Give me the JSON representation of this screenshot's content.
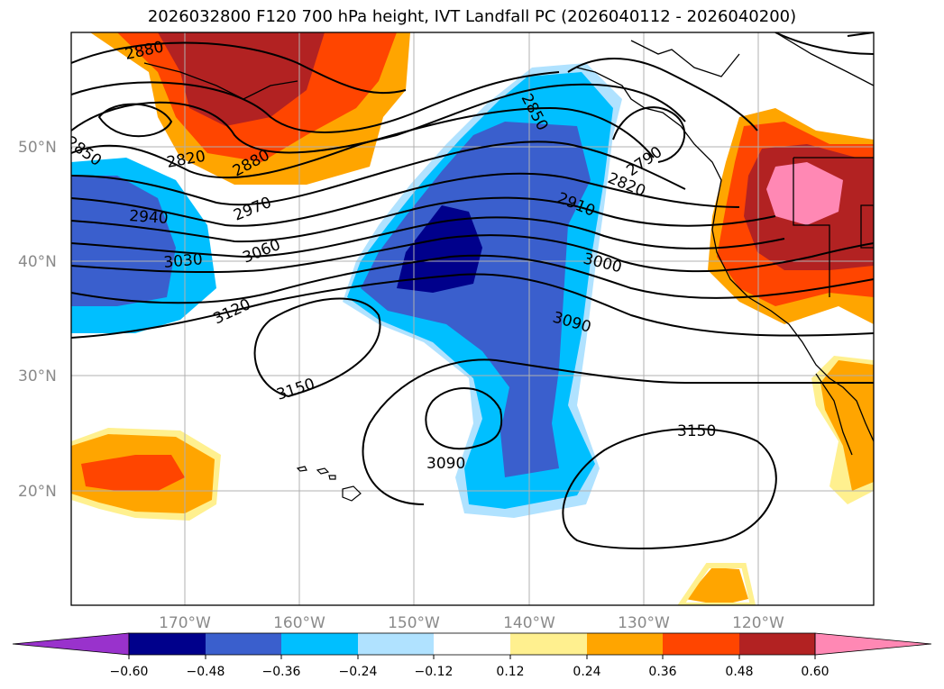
{
  "title": "2026032800 F120 700 hPa height, IVT Landfall PC (2026040112 - 2026040200)",
  "latitude_labels": [
    "50°N",
    "40°N",
    "30°N",
    "20°N"
  ],
  "longitude_labels": [
    "170°W",
    "160°W",
    "150°W",
    "140°W",
    "130°W",
    "120°W"
  ],
  "height_contour_labels": [
    "2880",
    "2850",
    "2820",
    "2880",
    "2940",
    "2970",
    "3030",
    "3060",
    "3120",
    "3150",
    "3090",
    "2850",
    "2790",
    "2820",
    "2910",
    "3000",
    "3090",
    "3150"
  ],
  "colorbar": {
    "ticks": [
      "−0.60",
      "−0.48",
      "−0.36",
      "−0.24",
      "−0.12",
      "0.12",
      "0.24",
      "0.36",
      "0.48",
      "0.60"
    ],
    "colors": [
      "#9932cc",
      "#00008b",
      "#3a5fcd",
      "#00bfff",
      "#b0e2ff",
      "#ffffff",
      "#fff08f",
      "#ffa500",
      "#ff4500",
      "#b22222",
      "#ff88b4"
    ]
  }
}
